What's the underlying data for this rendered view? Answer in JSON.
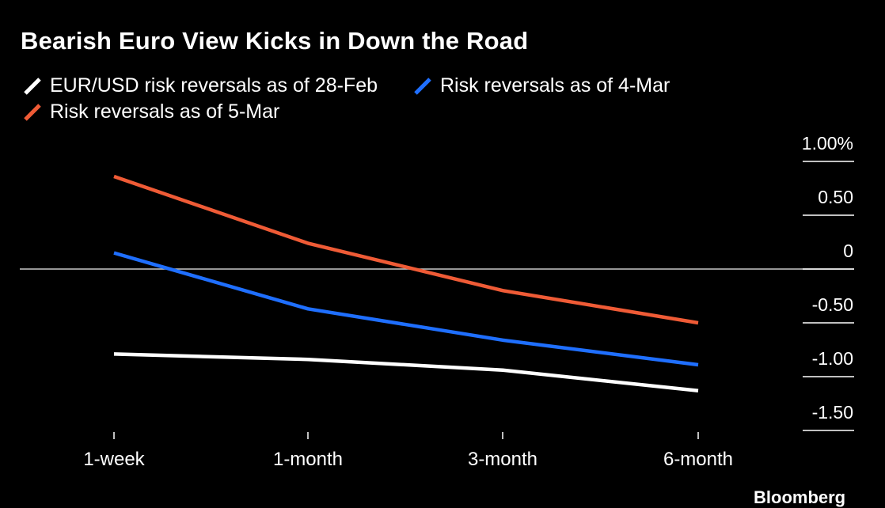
{
  "chart_data": {
    "type": "line",
    "title": "Bearish Euro View Kicks in Down the Road",
    "categories": [
      "1-week",
      "1-month",
      "3-month",
      "6-month"
    ],
    "series": [
      {
        "name": "EUR/USD risk reversals as of 28-Feb",
        "color": "#ffffff",
        "values": [
          -0.79,
          -0.84,
          -0.94,
          -1.13
        ]
      },
      {
        "name": "Risk reversals as of 4-Mar",
        "color": "#1f6fff",
        "values": [
          0.15,
          -0.37,
          -0.66,
          -0.89
        ]
      },
      {
        "name": "Risk reversals as of 5-Mar",
        "color": "#ef5b36",
        "values": [
          0.86,
          0.24,
          -0.2,
          -0.5
        ]
      }
    ],
    "ylim": [
      -1.5,
      1.0
    ],
    "yticks": [
      1.0,
      0.5,
      0,
      -0.5,
      -1.0,
      -1.5
    ],
    "ytick_labels": [
      "1.00%",
      "0.50",
      "0",
      "-0.50",
      "-1.00",
      "-1.50"
    ],
    "y_axis_side": "right",
    "zero_line": true,
    "grid": false,
    "legend_position": "top-left"
  },
  "source": "Bloomberg"
}
